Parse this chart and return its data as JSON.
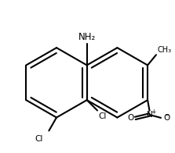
{
  "bg_color": "#ffffff",
  "line_color": "#000000",
  "line_width": 1.5,
  "font_size": 7.5,
  "figsize": [
    2.23,
    1.96
  ],
  "dpi": 100,
  "NH2_label": "NH₂",
  "Cl1_label": "Cl",
  "Cl2_label": "Cl",
  "Me_label": "CH₃",
  "N_label": "N",
  "O_label": "O",
  "plus": "+",
  "minus": "−"
}
